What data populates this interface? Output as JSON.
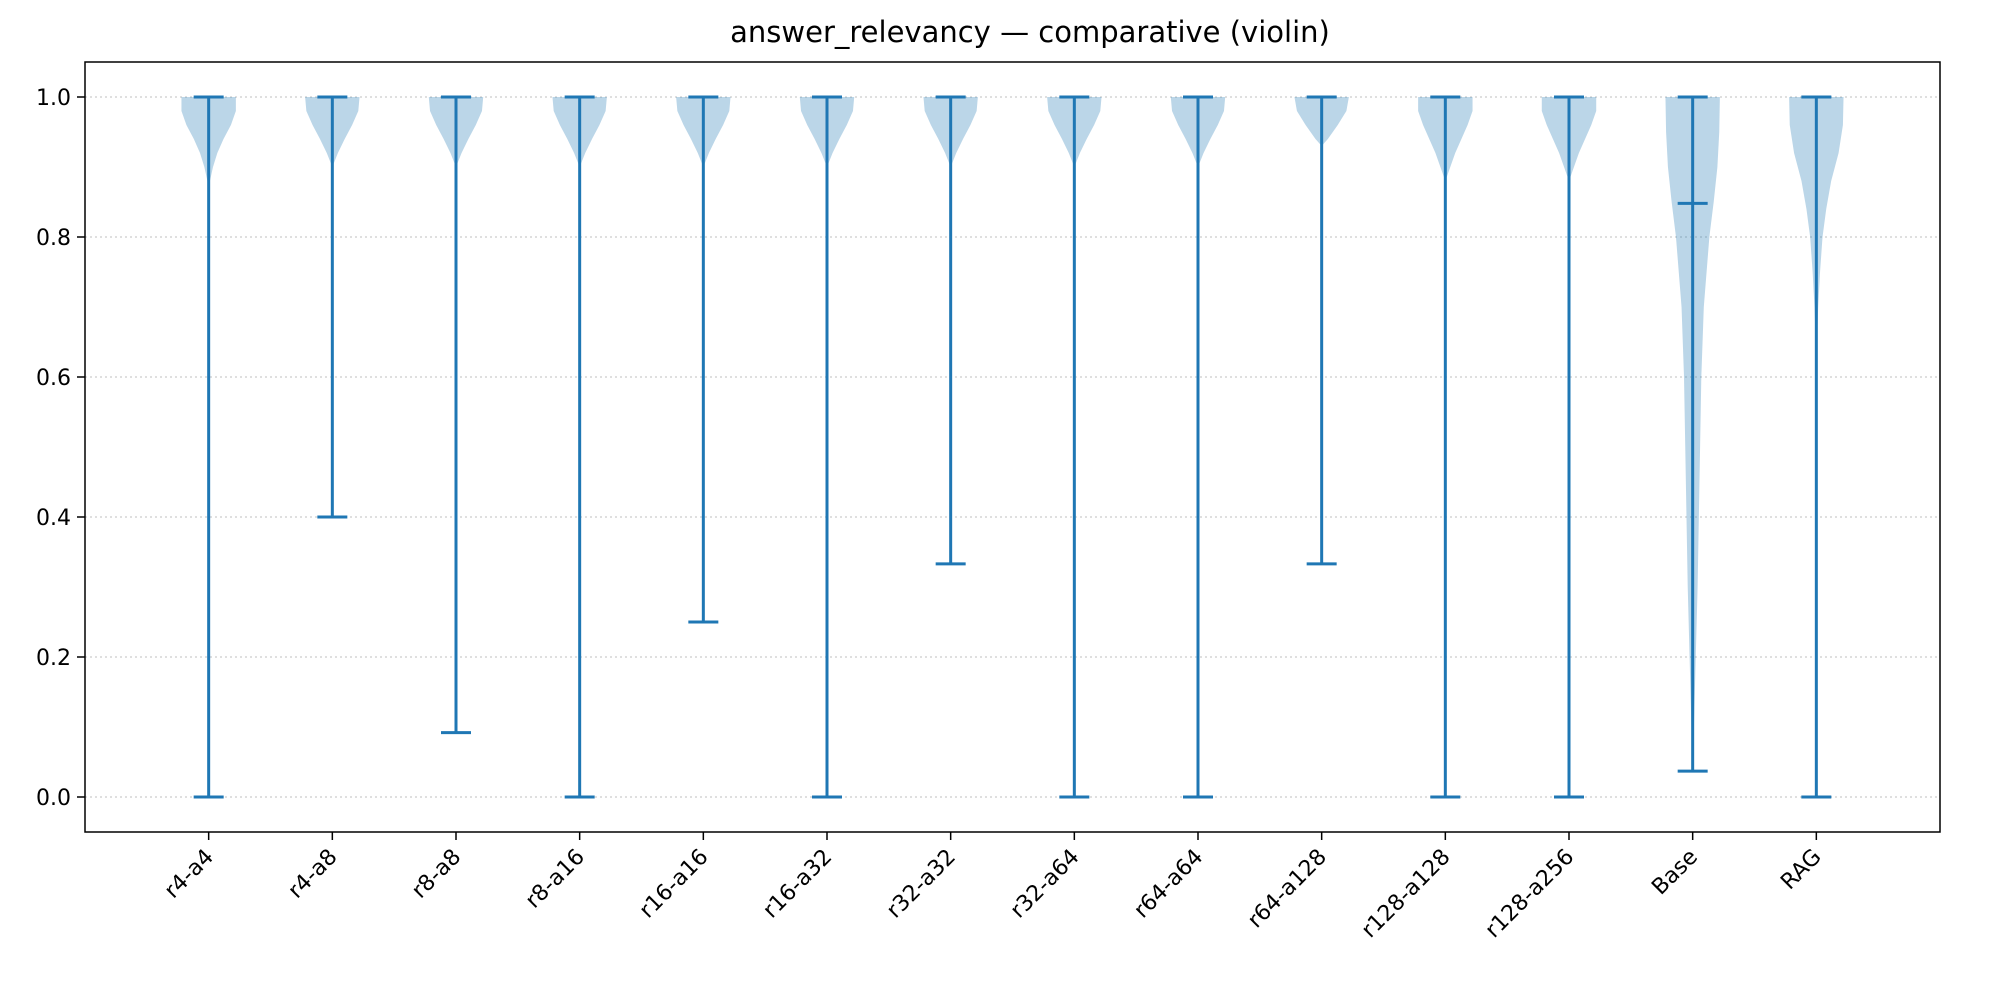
{
  "chart_data": {
    "type": "violin",
    "title": "answer_relevancy — comparative (violin)",
    "xlabel": "",
    "ylabel": "",
    "ylim": [
      -0.05,
      1.05
    ],
    "yticks": [
      0.0,
      0.2,
      0.4,
      0.6,
      0.8,
      1.0
    ],
    "ytick_labels": [
      "0.0",
      "0.2",
      "0.4",
      "0.6",
      "0.8",
      "1.0"
    ],
    "grid": "y-dotted",
    "categories": [
      "r4-a4",
      "r4-a8",
      "r8-a8",
      "r8-a16",
      "r16-a16",
      "r16-a32",
      "r32-a32",
      "r32-a64",
      "r64-a64",
      "r64-a128",
      "r128-a128",
      "r128-a256",
      "Base",
      "RAG"
    ],
    "series": [
      {
        "name": "r4-a4",
        "min": 0.0,
        "max": 1.0,
        "median": null,
        "density": [
          [
            1.0,
            0.44
          ],
          [
            0.98,
            0.44
          ],
          [
            0.96,
            0.36
          ],
          [
            0.94,
            0.24
          ],
          [
            0.92,
            0.14
          ],
          [
            0.9,
            0.07
          ],
          [
            0.88,
            0.02
          ],
          [
            0.86,
            0.0
          ]
        ]
      },
      {
        "name": "r4-a8",
        "min": 0.4,
        "max": 1.0,
        "median": null,
        "density": [
          [
            1.0,
            0.44
          ],
          [
            0.98,
            0.42
          ],
          [
            0.96,
            0.32
          ],
          [
            0.94,
            0.2
          ],
          [
            0.92,
            0.09
          ],
          [
            0.9,
            0.0
          ]
        ]
      },
      {
        "name": "r8-a8",
        "min": 0.092,
        "max": 1.0,
        "median": null,
        "density": [
          [
            1.0,
            0.44
          ],
          [
            0.98,
            0.42
          ],
          [
            0.96,
            0.32
          ],
          [
            0.94,
            0.2
          ],
          [
            0.92,
            0.09
          ],
          [
            0.9,
            0.0
          ]
        ]
      },
      {
        "name": "r8-a16",
        "min": 0.0,
        "max": 1.0,
        "median": null,
        "density": [
          [
            1.0,
            0.44
          ],
          [
            0.98,
            0.42
          ],
          [
            0.96,
            0.32
          ],
          [
            0.94,
            0.2
          ],
          [
            0.92,
            0.09
          ],
          [
            0.9,
            0.0
          ]
        ]
      },
      {
        "name": "r16-a16",
        "min": 0.25,
        "max": 1.0,
        "median": null,
        "density": [
          [
            1.0,
            0.44
          ],
          [
            0.98,
            0.42
          ],
          [
            0.96,
            0.32
          ],
          [
            0.94,
            0.2
          ],
          [
            0.92,
            0.09
          ],
          [
            0.9,
            0.0
          ]
        ]
      },
      {
        "name": "r16-a32",
        "min": 0.0,
        "max": 1.0,
        "median": null,
        "density": [
          [
            1.0,
            0.44
          ],
          [
            0.98,
            0.42
          ],
          [
            0.96,
            0.32
          ],
          [
            0.94,
            0.2
          ],
          [
            0.92,
            0.09
          ],
          [
            0.9,
            0.0
          ]
        ]
      },
      {
        "name": "r32-a32",
        "min": 0.333,
        "max": 1.0,
        "median": null,
        "density": [
          [
            1.0,
            0.44
          ],
          [
            0.98,
            0.42
          ],
          [
            0.96,
            0.32
          ],
          [
            0.94,
            0.2
          ],
          [
            0.92,
            0.09
          ],
          [
            0.9,
            0.0
          ]
        ]
      },
      {
        "name": "r32-a64",
        "min": 0.0,
        "max": 1.0,
        "median": null,
        "density": [
          [
            1.0,
            0.44
          ],
          [
            0.98,
            0.42
          ],
          [
            0.96,
            0.32
          ],
          [
            0.94,
            0.2
          ],
          [
            0.92,
            0.09
          ],
          [
            0.9,
            0.0
          ]
        ]
      },
      {
        "name": "r64-a64",
        "min": 0.0,
        "max": 1.0,
        "median": null,
        "density": [
          [
            1.0,
            0.44
          ],
          [
            0.98,
            0.42
          ],
          [
            0.96,
            0.32
          ],
          [
            0.94,
            0.2
          ],
          [
            0.92,
            0.09
          ],
          [
            0.9,
            0.0
          ]
        ]
      },
      {
        "name": "r64-a128",
        "min": 0.333,
        "max": 1.0,
        "median": null,
        "density": [
          [
            1.0,
            0.44
          ],
          [
            0.98,
            0.4
          ],
          [
            0.96,
            0.26
          ],
          [
            0.94,
            0.1
          ],
          [
            0.93,
            0.0
          ]
        ]
      },
      {
        "name": "r128-a128",
        "min": 0.0,
        "max": 1.0,
        "median": null,
        "density": [
          [
            1.0,
            0.44
          ],
          [
            0.98,
            0.44
          ],
          [
            0.96,
            0.36
          ],
          [
            0.94,
            0.26
          ],
          [
            0.92,
            0.16
          ],
          [
            0.9,
            0.08
          ],
          [
            0.88,
            0.0
          ]
        ]
      },
      {
        "name": "r128-a256",
        "min": 0.0,
        "max": 1.0,
        "median": null,
        "density": [
          [
            1.0,
            0.44
          ],
          [
            0.98,
            0.44
          ],
          [
            0.96,
            0.36
          ],
          [
            0.94,
            0.26
          ],
          [
            0.92,
            0.16
          ],
          [
            0.9,
            0.08
          ],
          [
            0.88,
            0.0
          ]
        ]
      },
      {
        "name": "Base",
        "min": 0.037,
        "max": 1.0,
        "median": 0.848,
        "density": [
          [
            1.0,
            0.44
          ],
          [
            0.95,
            0.43
          ],
          [
            0.9,
            0.4
          ],
          [
            0.85,
            0.34
          ],
          [
            0.8,
            0.27
          ],
          [
            0.7,
            0.18
          ],
          [
            0.6,
            0.14
          ],
          [
            0.5,
            0.12
          ],
          [
            0.4,
            0.1
          ],
          [
            0.3,
            0.08
          ],
          [
            0.2,
            0.05
          ],
          [
            0.1,
            0.02
          ],
          [
            0.037,
            0.0
          ]
        ]
      },
      {
        "name": "RAG",
        "min": 0.0,
        "max": 1.0,
        "median": null,
        "density": [
          [
            1.0,
            0.44
          ],
          [
            0.96,
            0.43
          ],
          [
            0.92,
            0.36
          ],
          [
            0.88,
            0.24
          ],
          [
            0.84,
            0.16
          ],
          [
            0.8,
            0.1
          ],
          [
            0.75,
            0.06
          ],
          [
            0.7,
            0.03
          ],
          [
            0.65,
            0.01
          ],
          [
            0.6,
            0.0
          ]
        ]
      }
    ],
    "colors": {
      "line": "#1f77b4",
      "violin_fill": "#1f77b4",
      "violin_alpha": 0.3,
      "grid": "#cccccc",
      "axis": "#000000"
    }
  }
}
